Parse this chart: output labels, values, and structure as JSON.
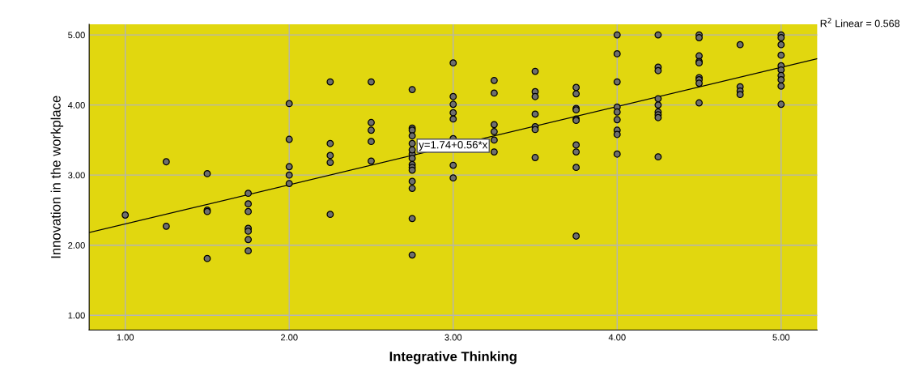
{
  "chart_data": {
    "type": "scatter",
    "xlabel": "Integrative Thinking",
    "ylabel": "Innovation in the workplace",
    "xlim": [
      0.78,
      5.22
    ],
    "ylim": [
      0.79,
      5.15
    ],
    "xticks": [
      {
        "value": 1,
        "label": "1.00"
      },
      {
        "value": 2,
        "label": "2.00"
      },
      {
        "value": 3,
        "label": "3.00"
      },
      {
        "value": 4,
        "label": "4.00"
      },
      {
        "value": 5,
        "label": "5.00"
      }
    ],
    "yticks": [
      {
        "value": 1,
        "label": "1.00"
      },
      {
        "value": 2,
        "label": "2.00"
      },
      {
        "value": 3,
        "label": "3.00"
      },
      {
        "value": 4,
        "label": "4.00"
      },
      {
        "value": 5,
        "label": "5.00"
      }
    ],
    "grid": true,
    "legend": false,
    "series": [
      {
        "marker": "circle",
        "color": "#6e6e6e",
        "x": [
          1.0,
          1.25,
          1.25,
          1.5,
          1.5,
          1.5,
          1.5,
          1.75,
          1.75,
          1.75,
          1.75,
          1.75,
          1.75,
          1.75,
          2.0,
          2.0,
          2.0,
          2.0,
          2.0,
          2.25,
          2.25,
          2.25,
          2.25,
          2.25,
          2.5,
          2.5,
          2.5,
          2.5,
          2.5,
          2.75,
          2.75,
          2.75,
          2.75,
          2.75,
          2.75,
          2.75,
          2.75,
          2.75,
          2.75,
          2.75,
          2.75,
          2.75,
          2.75,
          2.75,
          3.0,
          3.0,
          3.0,
          3.0,
          3.0,
          3.0,
          3.0,
          3.0,
          3.25,
          3.25,
          3.25,
          3.25,
          3.25,
          3.25,
          3.5,
          3.5,
          3.5,
          3.5,
          3.5,
          3.5,
          3.5,
          3.75,
          3.75,
          3.75,
          3.75,
          3.75,
          3.75,
          3.75,
          3.75,
          3.75,
          3.75,
          4.0,
          4.0,
          4.0,
          4.0,
          4.0,
          4.0,
          4.0,
          4.0,
          4.0,
          4.25,
          4.25,
          4.25,
          4.25,
          4.25,
          4.25,
          4.25,
          4.25,
          4.25,
          4.5,
          4.5,
          4.5,
          4.5,
          4.5,
          4.5,
          4.5,
          4.5,
          4.5,
          4.75,
          4.75,
          4.75,
          4.75,
          5.0,
          5.0,
          5.0,
          5.0,
          5.0,
          5.0,
          5.0,
          5.0,
          5.0,
          5.0
        ],
        "values": [
          2.43,
          3.19,
          2.27,
          3.02,
          2.5,
          2.48,
          1.81,
          2.74,
          2.59,
          2.48,
          2.24,
          2.2,
          2.08,
          1.92,
          4.02,
          3.51,
          3.12,
          3.0,
          2.88,
          4.33,
          3.45,
          3.28,
          3.18,
          2.44,
          4.33,
          3.75,
          3.64,
          3.48,
          3.2,
          4.22,
          3.67,
          3.64,
          3.56,
          3.45,
          3.3,
          3.24,
          3.15,
          3.11,
          3.07,
          2.91,
          2.81,
          2.38,
          1.86,
          3.36,
          4.6,
          4.12,
          4.01,
          3.89,
          3.8,
          3.52,
          3.14,
          2.96,
          4.35,
          4.17,
          3.72,
          3.62,
          3.5,
          3.33,
          4.48,
          4.19,
          4.12,
          3.87,
          3.69,
          3.65,
          3.25,
          4.25,
          4.16,
          3.95,
          3.93,
          3.8,
          3.78,
          3.43,
          3.33,
          3.11,
          2.13,
          5.0,
          4.73,
          4.33,
          3.97,
          3.9,
          3.79,
          3.64,
          3.58,
          3.3,
          5.0,
          4.54,
          4.49,
          4.09,
          4.0,
          3.9,
          3.86,
          3.82,
          3.26,
          5.0,
          4.96,
          4.7,
          4.62,
          4.6,
          4.39,
          4.36,
          4.31,
          4.03,
          4.86,
          4.26,
          4.2,
          4.15,
          5.0,
          4.96,
          4.86,
          4.71,
          4.56,
          4.5,
          4.42,
          4.36,
          4.27,
          4.01
        ]
      },
      {
        "type": "line",
        "marker": "none",
        "color": "#000000",
        "x": [
          0.78,
          5.22
        ],
        "values": [
          2.18,
          4.66
        ]
      }
    ],
    "annotations": [
      {
        "text": "y=1.74+0.56*x",
        "x": 3.0,
        "y": 3.42
      },
      "R$^{2}$ Linear = 0.568"
    ]
  }
}
